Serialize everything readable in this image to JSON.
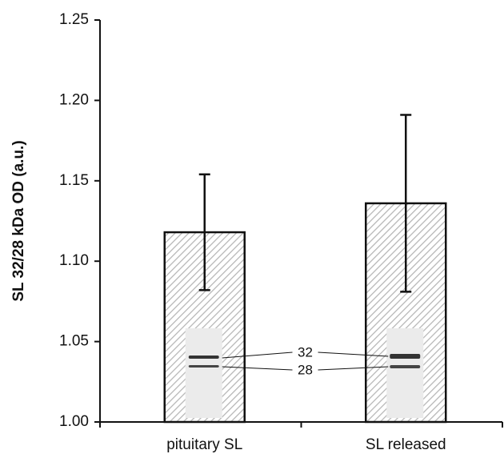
{
  "chart_data": {
    "type": "bar",
    "y_label": "SL 32/28 kDa OD (a.u.)",
    "categories": [
      "pituitary SL",
      "SL released"
    ],
    "values": [
      1.118,
      1.136
    ],
    "errors": [
      0.036,
      0.055
    ],
    "color": "#b5b5b5",
    "ylim": [
      1.0,
      1.25
    ],
    "yticks": [
      {
        "value": 1.0,
        "label": "1.00"
      },
      {
        "value": 1.05,
        "label": "1.05"
      },
      {
        "value": 1.1,
        "label": "1.10"
      },
      {
        "value": 1.15,
        "label": "1.15"
      },
      {
        "value": 1.2,
        "label": "1.20"
      },
      {
        "value": 1.25,
        "label": "1.25"
      }
    ],
    "annotations": [
      "32",
      "28"
    ]
  }
}
